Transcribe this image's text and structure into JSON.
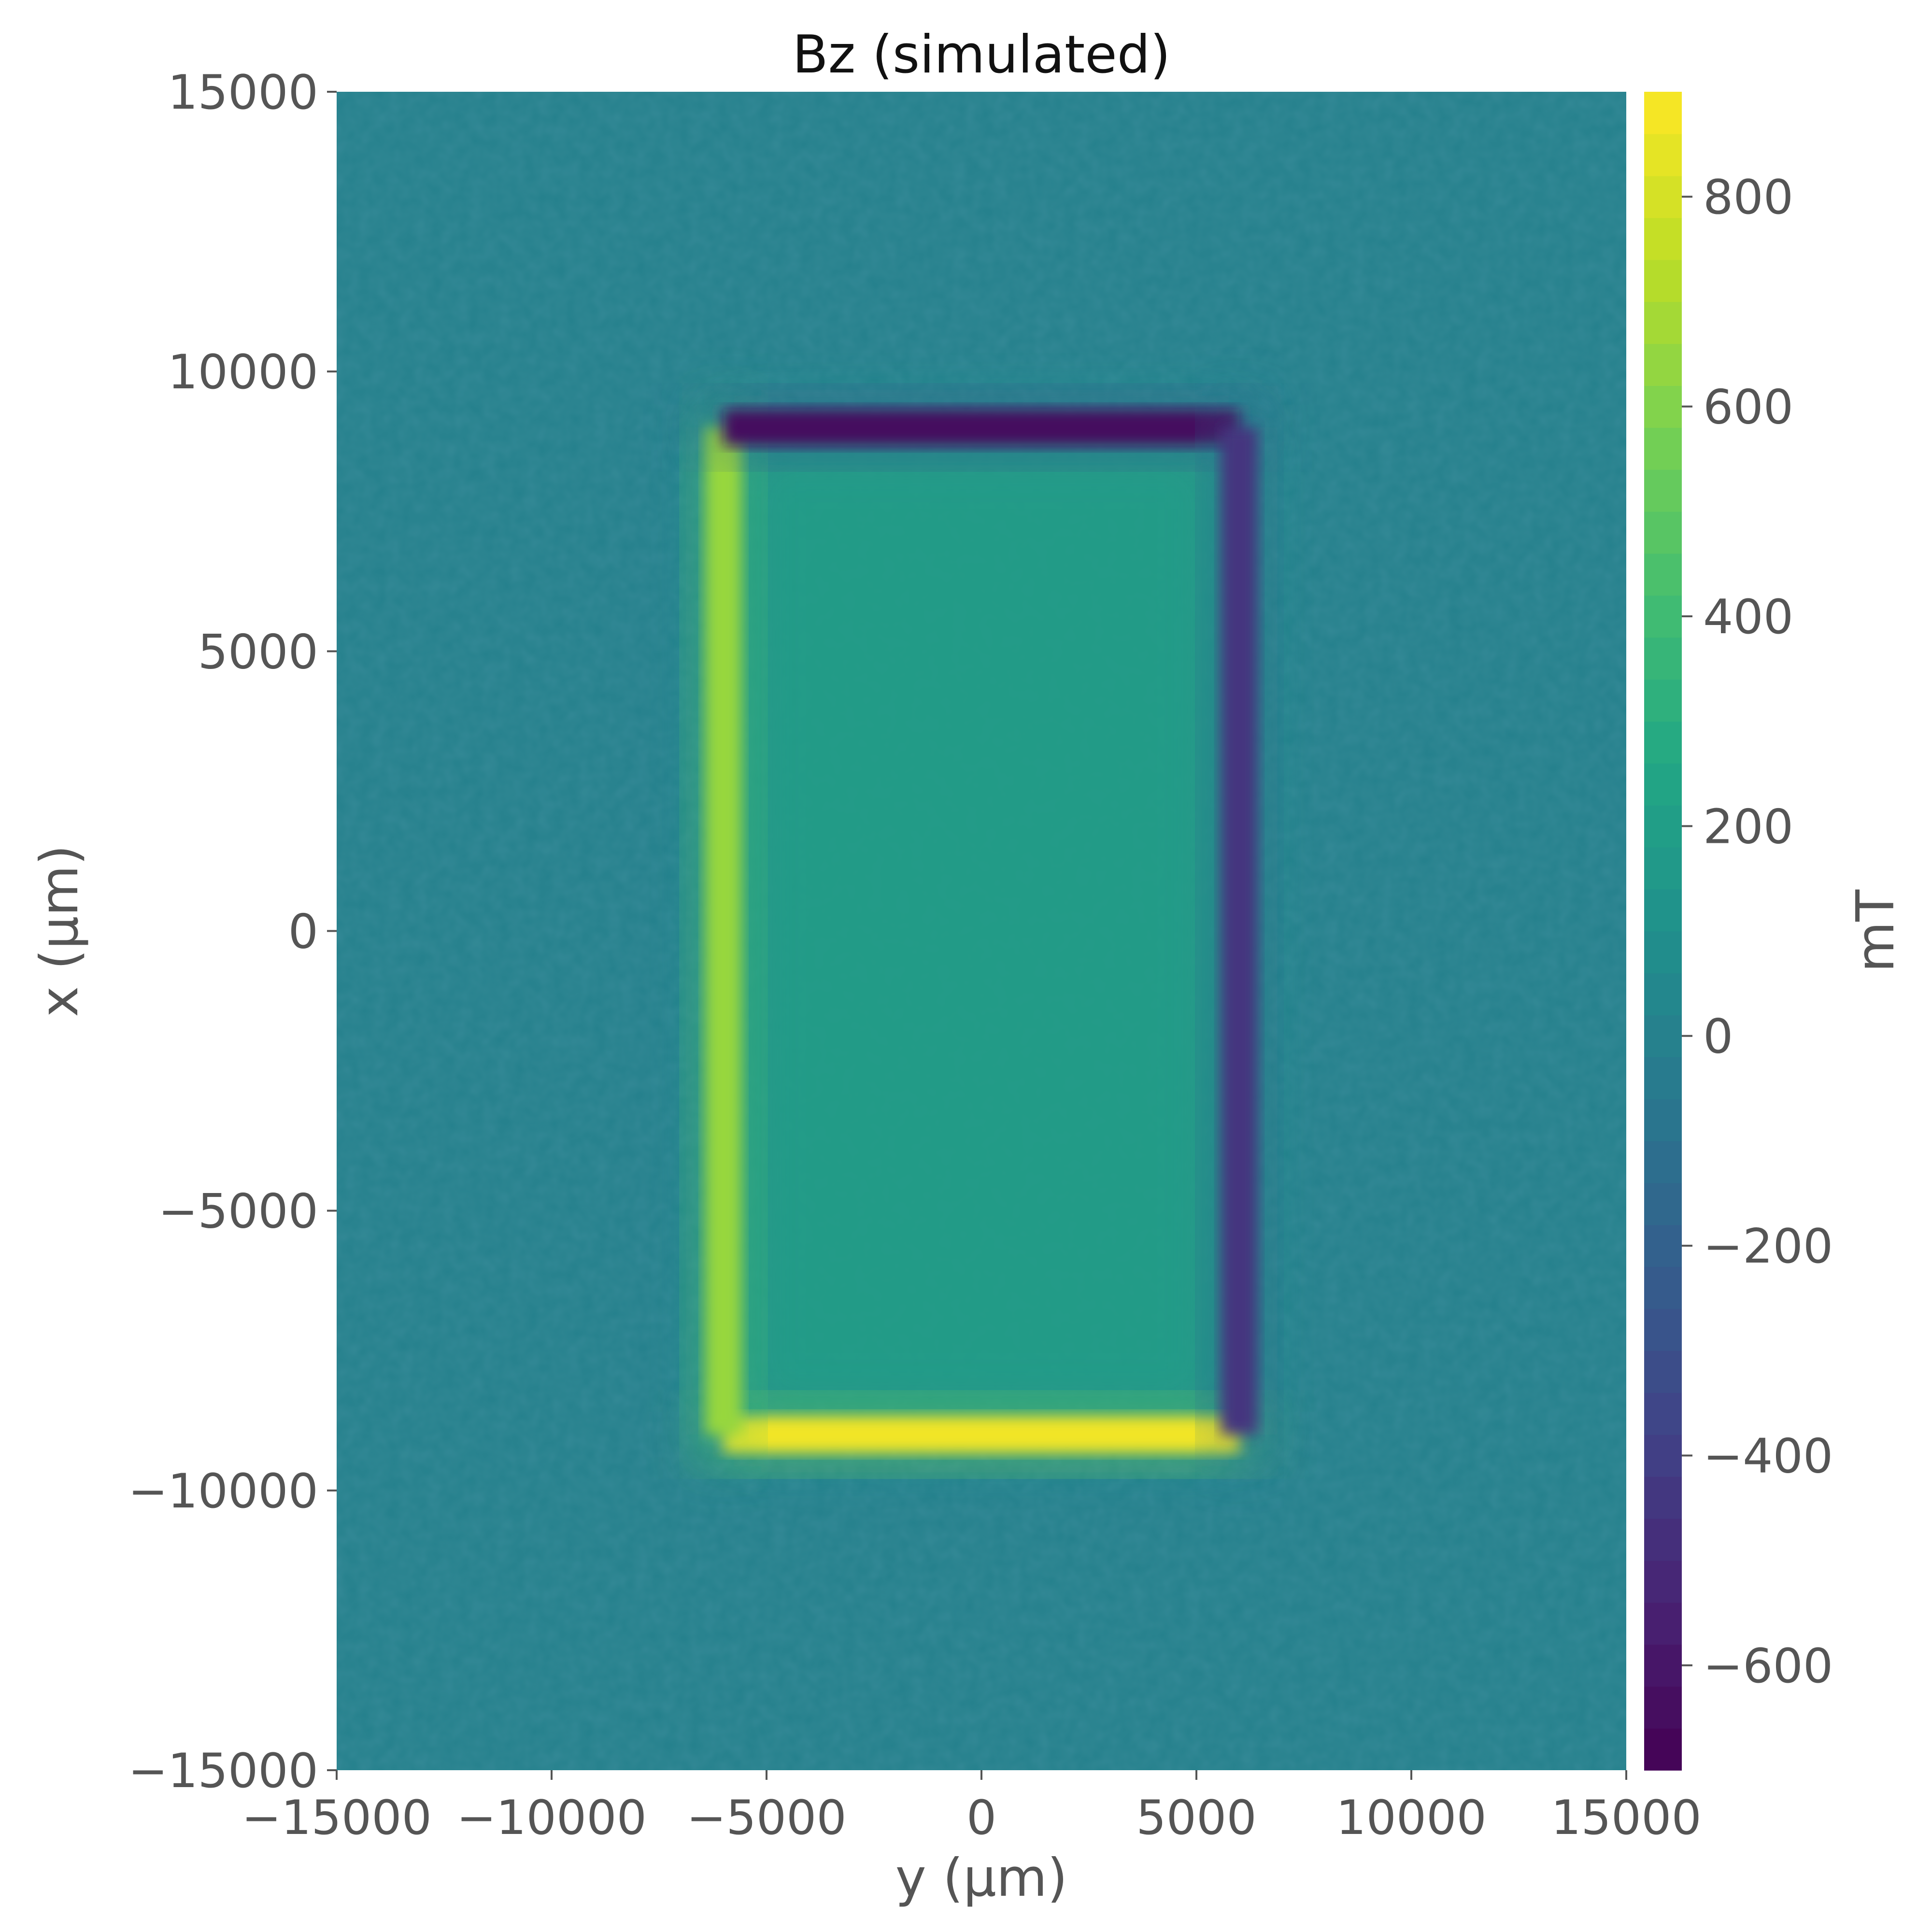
{
  "chart_data": {
    "type": "heatmap",
    "title": "Bz (simulated)",
    "xlabel": "y (μm)",
    "ylabel": "x (μm)",
    "xlim": [
      -15000,
      15000
    ],
    "ylim": [
      -15000,
      15000
    ],
    "x_ticks": [
      "−15000",
      "−10000",
      "−5000",
      "0",
      "5000",
      "10000",
      "15000"
    ],
    "x_tick_values": [
      -15000,
      -10000,
      -5000,
      0,
      5000,
      10000,
      15000
    ],
    "y_ticks": [
      "15000",
      "10000",
      "5000",
      "0",
      "−5000",
      "−10000",
      "−15000"
    ],
    "y_tick_values": [
      15000,
      10000,
      5000,
      0,
      -5000,
      -10000,
      -15000
    ],
    "colorbar": {
      "label": "mT",
      "colormap": "viridis",
      "range": [
        -700,
        900
      ],
      "ticks": [
        "800",
        "600",
        "400",
        "200",
        "0",
        "−200",
        "−400",
        "−600"
      ],
      "tick_values": [
        800,
        600,
        400,
        200,
        0,
        -200,
        -400,
        -600
      ]
    },
    "background_value": 0,
    "rectangle": {
      "y_min": -6000,
      "y_max": 6000,
      "x_min": -9000,
      "x_max": 9000
    },
    "features": [
      {
        "edge": "bottom",
        "x": -9000,
        "y_range": [
          -6000,
          6000
        ],
        "value": 870
      },
      {
        "edge": "left",
        "y": -6000,
        "x_range": [
          -9000,
          9000
        ],
        "value": 650
      },
      {
        "edge": "top",
        "x": 9000,
        "y_range": [
          -6000,
          6000
        ],
        "value": -650
      },
      {
        "edge": "right",
        "y": 6000,
        "x_range": [
          -9000,
          9000
        ],
        "value": -450
      },
      {
        "region": "interior",
        "value": 200
      }
    ]
  }
}
